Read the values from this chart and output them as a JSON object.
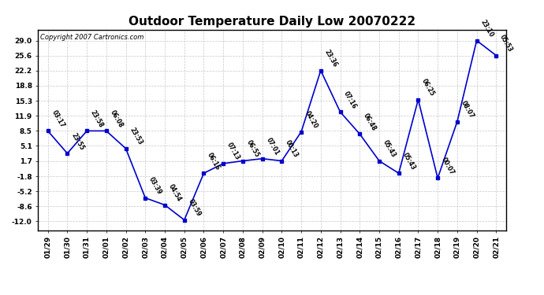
{
  "title": "Outdoor Temperature Daily Low 20070222",
  "copyright": "Copyright 2007 Cartronics.com",
  "line_color": "#0000cc",
  "marker_color": "#0000cc",
  "bg_color": "#ffffff",
  "grid_color": "#c8c8c8",
  "text_color": "#000000",
  "dates": [
    "01/29",
    "01/30",
    "01/31",
    "02/01",
    "02/02",
    "02/03",
    "02/04",
    "02/05",
    "02/06",
    "02/07",
    "02/08",
    "02/09",
    "02/10",
    "02/11",
    "02/12",
    "02/13",
    "02/14",
    "02/15",
    "02/16",
    "02/17",
    "02/18",
    "02/19",
    "02/20",
    "02/21"
  ],
  "values": [
    8.5,
    3.4,
    8.5,
    8.5,
    4.5,
    -6.7,
    -8.3,
    -11.7,
    -1.1,
    1.1,
    1.7,
    2.2,
    1.7,
    8.3,
    22.2,
    12.8,
    7.8,
    1.7,
    -1.1,
    15.6,
    -2.2,
    10.6,
    29.0,
    25.6
  ],
  "labels": [
    "03:17",
    "23:55",
    "23:58",
    "06:08",
    "23:53",
    "03:39",
    "04:54",
    "03:59",
    "06:16",
    "07:13",
    "06:55",
    "07:01",
    "00:13",
    "04:20",
    "23:36",
    "07:16",
    "06:48",
    "05:43",
    "05:43",
    "06:25",
    "00:07",
    "08:07",
    "23:10",
    "05:53"
  ],
  "yticks": [
    -12.0,
    -8.6,
    -5.2,
    -1.8,
    1.7,
    5.1,
    8.5,
    11.9,
    15.3,
    18.8,
    22.2,
    25.6,
    29.0
  ],
  "ylim": [
    -14.0,
    31.5
  ],
  "title_fontsize": 11,
  "label_fontsize": 5.5,
  "tick_fontsize": 6.5,
  "copyright_fontsize": 6
}
